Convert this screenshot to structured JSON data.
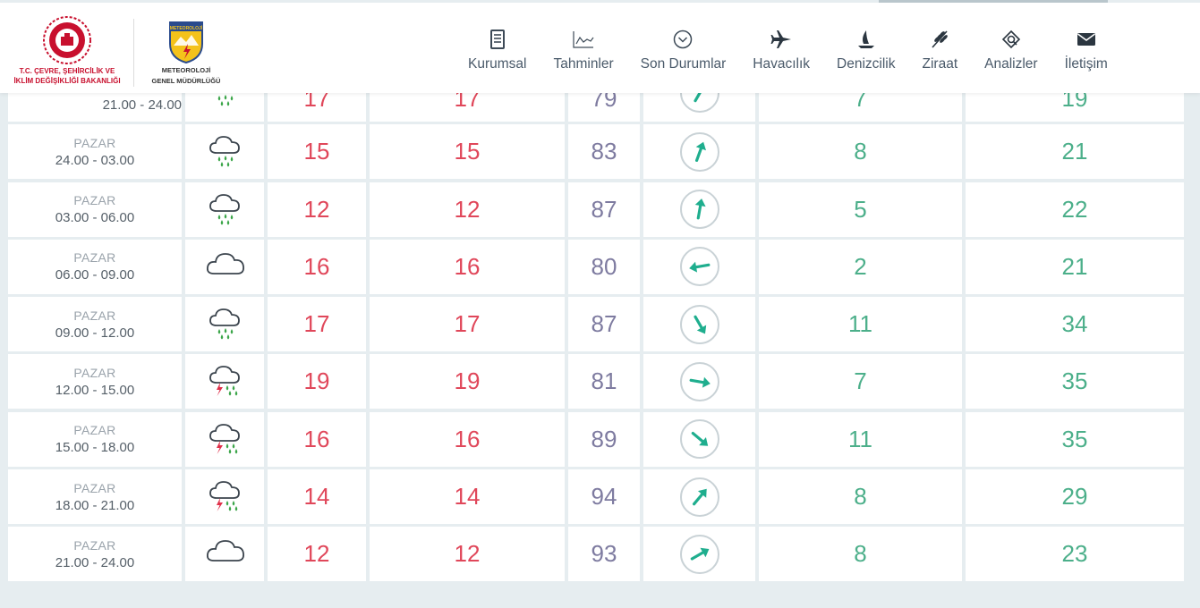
{
  "header": {
    "ministry_logo_text": [
      "T.C. ÇEVRE, ŞEHİRCİLİK VE",
      "İKLİM DEĞİŞİKLİĞİ BAKANLIĞI"
    ],
    "mgm_logo_text": [
      "METEOROLOJİ",
      "GENEL MÜDÜRLÜĞÜ"
    ],
    "mgm_badge_text": "METEOROLOJİ",
    "nav": [
      {
        "label": "Kurumsal",
        "icon": "document-icon"
      },
      {
        "label": "Tahminler",
        "icon": "chart-icon"
      },
      {
        "label": "Son Durumlar",
        "icon": "chevron-circle-icon"
      },
      {
        "label": "Havacılık",
        "icon": "plane-icon"
      },
      {
        "label": "Denizcilik",
        "icon": "sailboat-icon"
      },
      {
        "label": "Ziraat",
        "icon": "wheat-icon"
      },
      {
        "label": "Analizler",
        "icon": "analysis-icon"
      },
      {
        "label": "İletişim",
        "icon": "envelope-icon"
      }
    ]
  },
  "colors": {
    "temperature": "#e0475a",
    "humidity": "#7e7ba0",
    "wind": "#4caf8a",
    "arrow": "#1fae8e"
  },
  "rows": [
    {
      "day": "",
      "time": "21.00 - 24.00",
      "icon": "rain-icon",
      "temp": "17",
      "feels": "17",
      "humidity": "79",
      "wind_dir_deg": 30,
      "wind_speed": "7",
      "gust": "19"
    },
    {
      "day": "PAZAR",
      "time": "24.00 - 03.00",
      "icon": "rain-icon",
      "temp": "15",
      "feels": "15",
      "humidity": "83",
      "wind_dir_deg": 20,
      "wind_speed": "8",
      "gust": "21"
    },
    {
      "day": "PAZAR",
      "time": "03.00 - 06.00",
      "icon": "rain-icon",
      "temp": "12",
      "feels": "12",
      "humidity": "87",
      "wind_dir_deg": 10,
      "wind_speed": "5",
      "gust": "22"
    },
    {
      "day": "PAZAR",
      "time": "06.00 - 09.00",
      "icon": "cloud-icon",
      "temp": "16",
      "feels": "16",
      "humidity": "80",
      "wind_dir_deg": 260,
      "wind_speed": "2",
      "gust": "21"
    },
    {
      "day": "PAZAR",
      "time": "09.00 - 12.00",
      "icon": "rain-icon",
      "temp": "17",
      "feels": "17",
      "humidity": "87",
      "wind_dir_deg": 150,
      "wind_speed": "11",
      "gust": "34"
    },
    {
      "day": "PAZAR",
      "time": "12.00 - 15.00",
      "icon": "thunderstorm-icon",
      "temp": "19",
      "feels": "19",
      "humidity": "81",
      "wind_dir_deg": 100,
      "wind_speed": "7",
      "gust": "35"
    },
    {
      "day": "PAZAR",
      "time": "15.00 - 18.00",
      "icon": "thunderstorm-icon",
      "temp": "16",
      "feels": "16",
      "humidity": "89",
      "wind_dir_deg": 130,
      "wind_speed": "11",
      "gust": "35"
    },
    {
      "day": "PAZAR",
      "time": "18.00 - 21.00",
      "icon": "thunderstorm-icon",
      "temp": "14",
      "feels": "14",
      "humidity": "94",
      "wind_dir_deg": 40,
      "wind_speed": "8",
      "gust": "29"
    },
    {
      "day": "PAZAR",
      "time": "21.00 - 24.00",
      "icon": "cloud-icon",
      "temp": "12",
      "feels": "12",
      "humidity": "93",
      "wind_dir_deg": 60,
      "wind_speed": "8",
      "gust": "23"
    }
  ]
}
